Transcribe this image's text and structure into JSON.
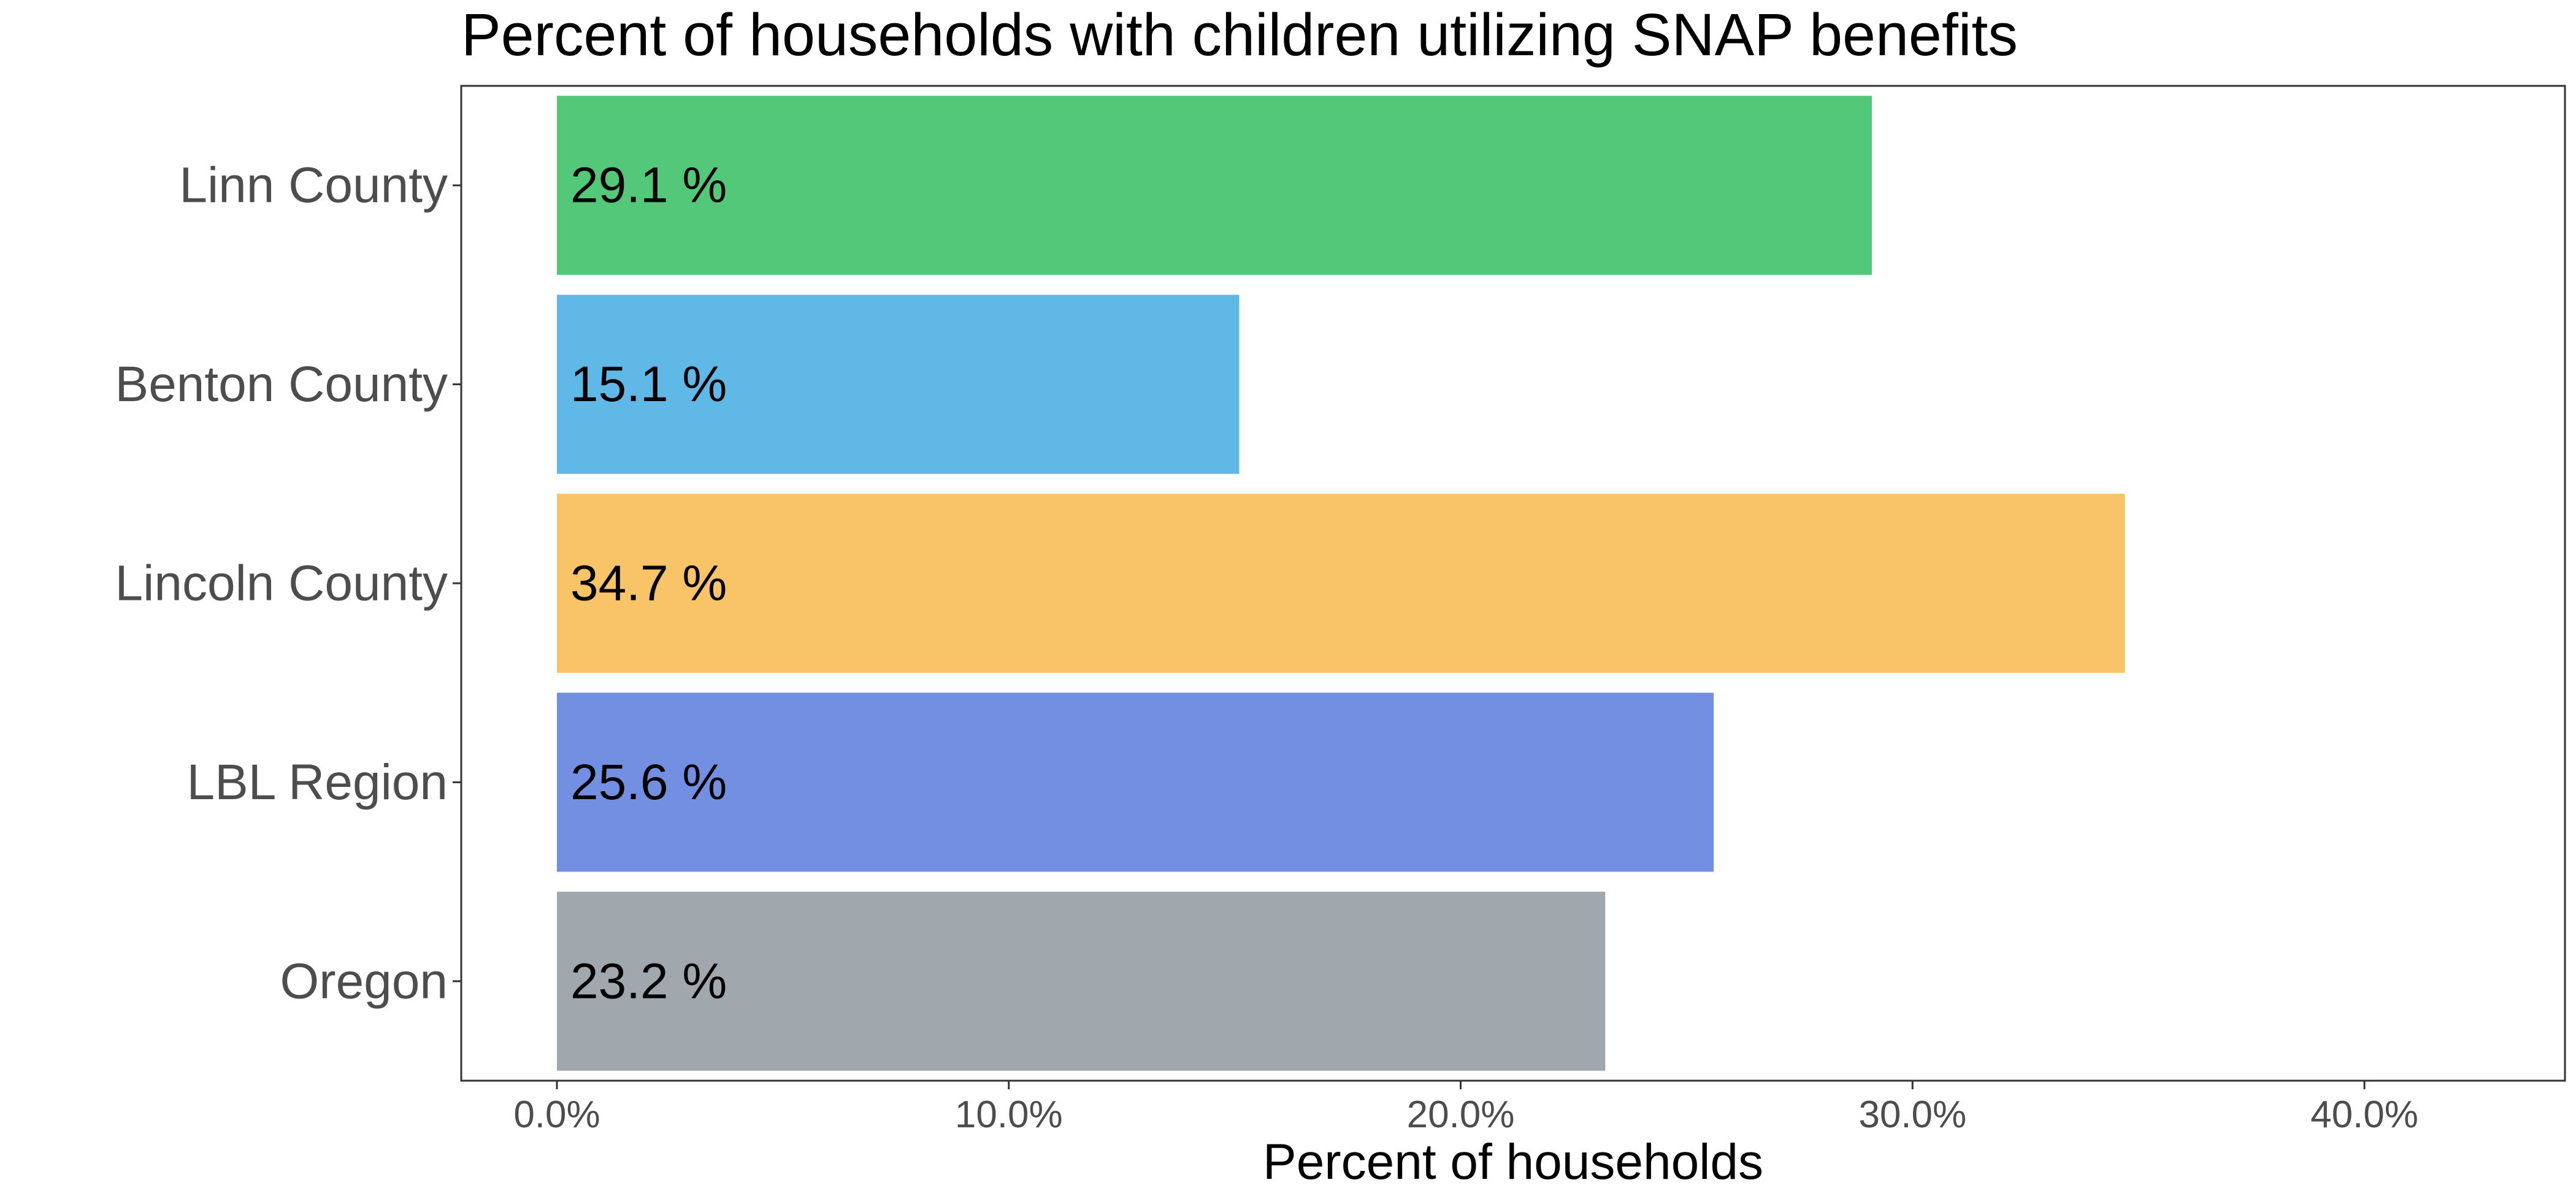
{
  "chart_data": {
    "type": "bar",
    "orientation": "horizontal",
    "title": "Percent of households with children utilizing SNAP benefits",
    "xlabel": "Percent of households",
    "ylabel": "",
    "categories": [
      "Linn County",
      "Benton County",
      "Lincoln County",
      "LBL Region",
      "Oregon"
    ],
    "values": [
      29.1,
      15.1,
      34.7,
      25.6,
      23.2
    ],
    "value_labels": [
      "29.1 %",
      "15.1 %",
      "34.7 %",
      "25.6 %",
      "23.2 %"
    ],
    "colors": [
      "#52c878",
      "#5fb8e6",
      "#f9c468",
      "#738fe2",
      "#a0a8ad"
    ],
    "xlim": [
      0,
      44.5
    ],
    "x_ticks": [
      0,
      10,
      20,
      30,
      40
    ],
    "x_tick_labels": [
      "0.0%",
      "10.0%",
      "20.0%",
      "30.0%",
      "40.0%"
    ],
    "grid": false,
    "legend": "none"
  }
}
